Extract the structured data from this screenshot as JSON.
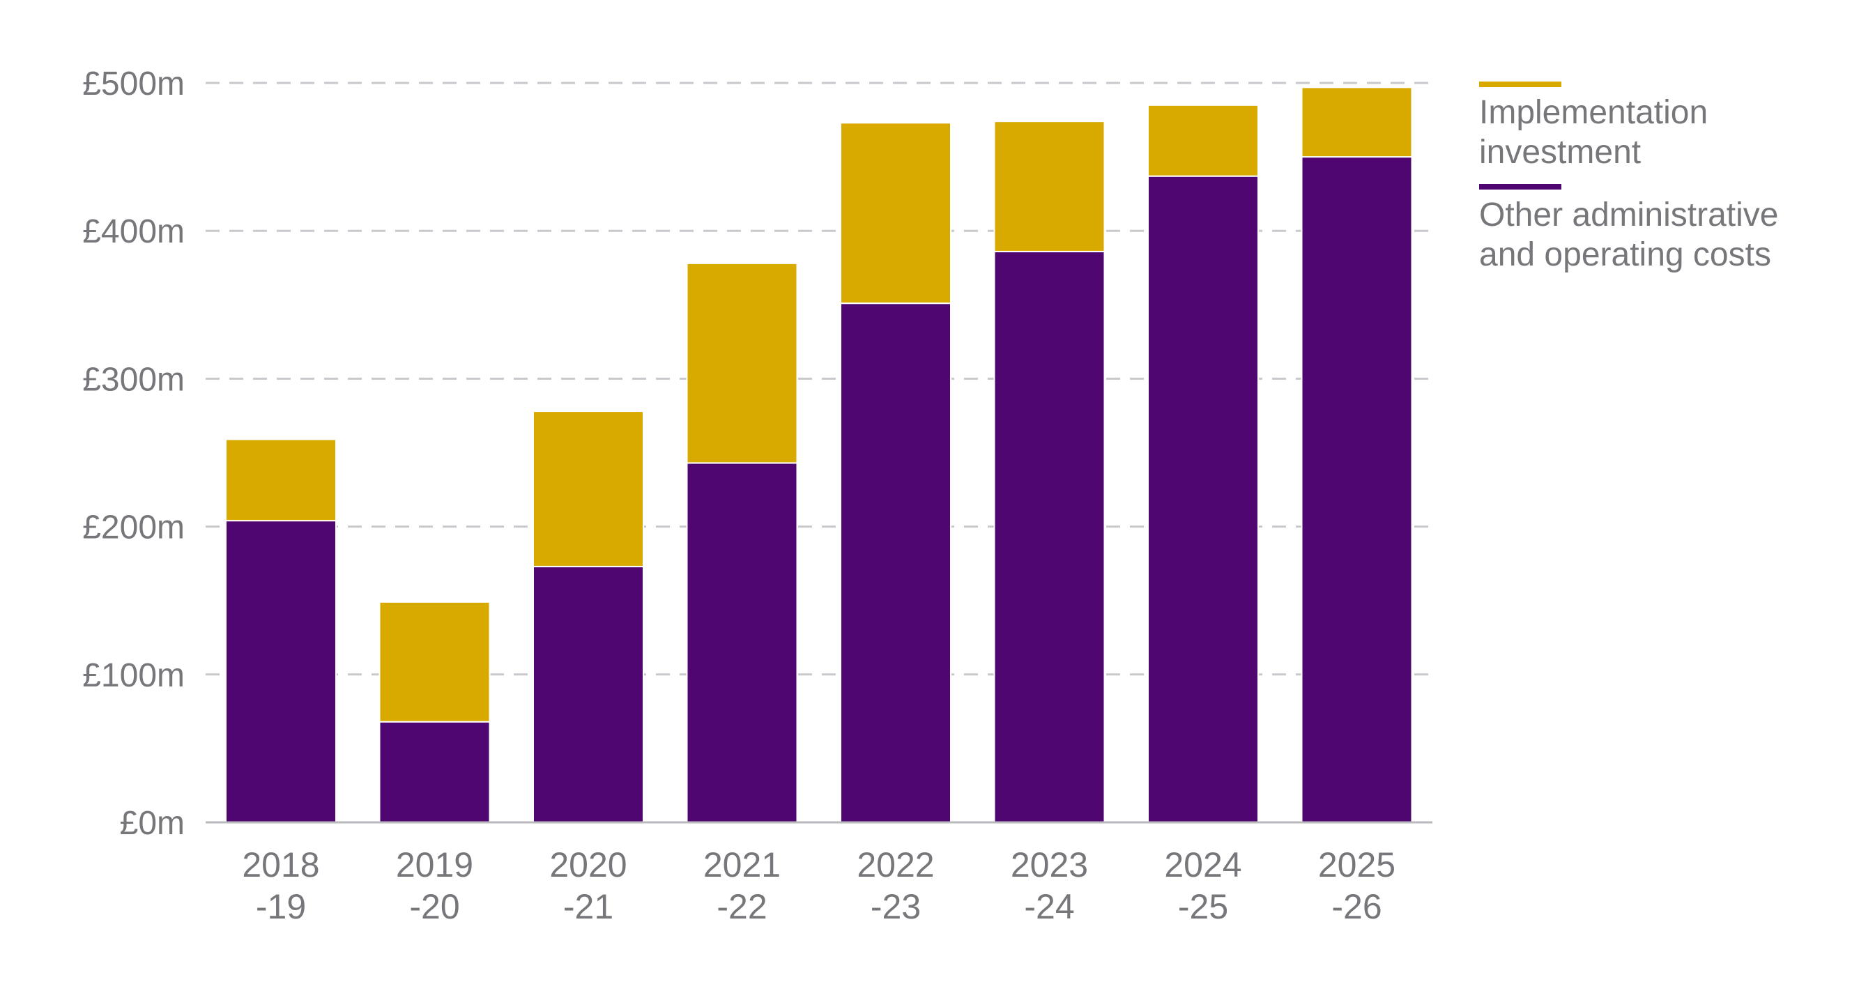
{
  "chart_data": {
    "type": "bar",
    "stacked": true,
    "categories": [
      [
        "2018",
        "-19"
      ],
      [
        "2019",
        "-20"
      ],
      [
        "2020",
        "-21"
      ],
      [
        "2021",
        "-22"
      ],
      [
        "2022",
        "-23"
      ],
      [
        "2023",
        "-24"
      ],
      [
        "2024",
        "-25"
      ],
      [
        "2025",
        "-26"
      ]
    ],
    "series": [
      {
        "name": "Other administrative and operating costs",
        "legend_lines": [
          "Other administrative",
          "and operating costs"
        ],
        "color": "#4f0670",
        "values": [
          204,
          68,
          173,
          243,
          351,
          386,
          437,
          450
        ]
      },
      {
        "name": "Implementation investment",
        "legend_lines": [
          "Implementation",
          "investment"
        ],
        "color": "#d8aa00",
        "values": [
          55,
          81,
          105,
          135,
          122,
          88,
          48,
          47
        ]
      }
    ],
    "ylim": [
      0,
      500
    ],
    "yticks": [
      0,
      100,
      200,
      300,
      400,
      500
    ],
    "ytick_labels": [
      "£0m",
      "£100m",
      "£200m",
      "£300m",
      "£400m",
      "£500m"
    ],
    "title": "",
    "xlabel": "",
    "ylabel": "",
    "grid": "horizontal dashed",
    "legend_placement": "top-right"
  }
}
